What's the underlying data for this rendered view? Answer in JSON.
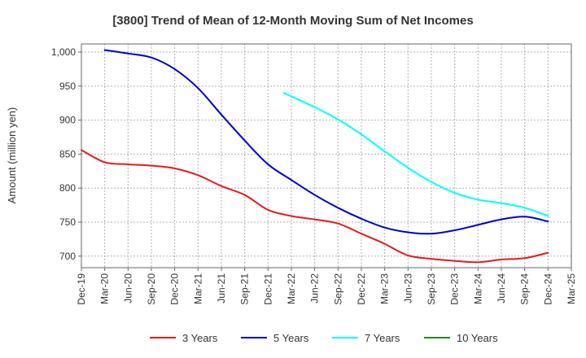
{
  "chart_data": {
    "type": "line",
    "title": "[3800]  Trend of Mean of 12-Month Moving Sum of Net Incomes",
    "ylabel": "Amount (million yen)",
    "xlabel": "",
    "ylim": [
      683,
      1012
    ],
    "y_ticks": [
      700,
      750,
      800,
      850,
      900,
      950,
      1000
    ],
    "y_tick_labels": [
      "700",
      "750",
      "800",
      "850",
      "900",
      "950",
      "1,000"
    ],
    "x_ticks": [
      "Dec-19",
      "Mar-20",
      "Jun-20",
      "Sep-20",
      "Dec-20",
      "Mar-21",
      "Jun-21",
      "Sep-21",
      "Dec-21",
      "Mar-22",
      "Jun-22",
      "Sep-22",
      "Dec-22",
      "Mar-23",
      "Jun-23",
      "Sep-23",
      "Dec-23",
      "Mar-24",
      "Jun-24",
      "Sep-24",
      "Dec-24",
      "Mar-25"
    ],
    "grid": true,
    "legend_position": "bottom",
    "series": [
      {
        "name": "3 Years",
        "color": "#e41a1c",
        "points": [
          [
            0,
            856
          ],
          [
            1,
            838
          ],
          [
            2,
            835
          ],
          [
            3,
            833
          ],
          [
            4,
            829
          ],
          [
            5,
            819
          ],
          [
            6,
            803
          ],
          [
            7,
            790
          ],
          [
            8,
            768
          ],
          [
            9,
            759
          ],
          [
            10,
            754
          ],
          [
            11,
            748
          ],
          [
            12,
            733
          ],
          [
            13,
            718
          ],
          [
            14,
            701
          ],
          [
            15,
            696
          ],
          [
            16,
            693
          ],
          [
            17,
            691
          ],
          [
            18,
            695
          ],
          [
            19,
            697
          ],
          [
            20,
            705
          ]
        ]
      },
      {
        "name": "5 Years",
        "color": "#0000cc",
        "points": [
          [
            1,
            1003
          ],
          [
            2,
            998
          ],
          [
            3,
            992
          ],
          [
            4,
            975
          ],
          [
            5,
            947
          ],
          [
            6,
            908
          ],
          [
            7,
            870
          ],
          [
            8,
            835
          ],
          [
            9,
            812
          ],
          [
            10,
            790
          ],
          [
            11,
            771
          ],
          [
            12,
            755
          ],
          [
            13,
            742
          ],
          [
            14,
            735
          ],
          [
            15,
            733
          ],
          [
            16,
            738
          ],
          [
            17,
            746
          ],
          [
            18,
            754
          ],
          [
            19,
            758
          ],
          [
            20,
            751
          ]
        ]
      },
      {
        "name": "7 Years",
        "color": "#00ffff",
        "points": [
          [
            8.67,
            940
          ],
          [
            10,
            919
          ],
          [
            11,
            901
          ],
          [
            12,
            879
          ],
          [
            13,
            854
          ],
          [
            14,
            830
          ],
          [
            15,
            809
          ],
          [
            16,
            793
          ],
          [
            17,
            783
          ],
          [
            18,
            778
          ],
          [
            19,
            771
          ],
          [
            20,
            759
          ]
        ]
      },
      {
        "name": "10 Years",
        "color": "#228b22",
        "points": []
      }
    ]
  }
}
